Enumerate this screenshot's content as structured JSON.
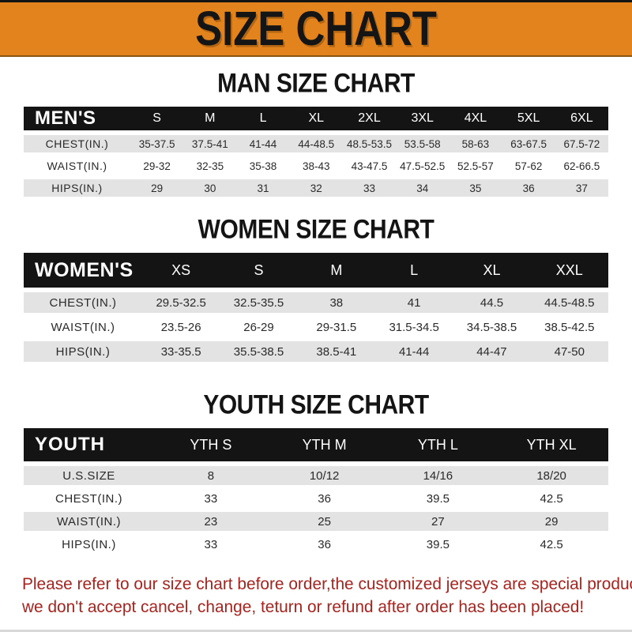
{
  "banner": {
    "title": "SIZE CHART"
  },
  "colors": {
    "banner_orange": "#E2831E",
    "bar_black": "#141414",
    "row_gray": "#E3E3E3",
    "note_red": "#A6241F"
  },
  "sections": [
    {
      "id": "men",
      "title": "MAN SIZE CHART",
      "table": {
        "header_label": "MEN'S",
        "columns": [
          "S",
          "M",
          "L",
          "XL",
          "2XL",
          "3XL",
          "4XL",
          "5XL",
          "6XL"
        ],
        "rows": [
          {
            "label": "CHEST(IN.)",
            "values": [
              "35-37.5",
              "37.5-41",
              "41-44",
              "44-48.5",
              "48.5-53.5",
              "53.5-58",
              "58-63",
              "63-67.5",
              "67.5-72"
            ]
          },
          {
            "label": "WAIST(IN.)",
            "values": [
              "29-32",
              "32-35",
              "35-38",
              "38-43",
              "43-47.5",
              "47.5-52.5",
              "52.5-57",
              "57-62",
              "62-66.5"
            ]
          },
          {
            "label": "HIPS(IN.)",
            "values": [
              "29",
              "30",
              "31",
              "32",
              "33",
              "34",
              "35",
              "36",
              "37"
            ]
          }
        ],
        "shaded_rows": [
          0,
          2
        ]
      }
    },
    {
      "id": "women",
      "title": "WOMEN SIZE CHART",
      "table": {
        "header_label": "WOMEN'S",
        "columns": [
          "XS",
          "S",
          "M",
          "L",
          "XL",
          "XXL"
        ],
        "rows": [
          {
            "label": "CHEST(IN.)",
            "values": [
              "29.5-32.5",
              "32.5-35.5",
              "38",
              "41",
              "44.5",
              "44.5-48.5"
            ]
          },
          {
            "label": "WAIST(IN.)",
            "values": [
              "23.5-26",
              "26-29",
              "29-31.5",
              "31.5-34.5",
              "34.5-38.5",
              "38.5-42.5"
            ]
          },
          {
            "label": "HIPS(IN.)",
            "values": [
              "33-35.5",
              "35.5-38.5",
              "38.5-41",
              "41-44",
              "44-47",
              "47-50"
            ]
          }
        ],
        "shaded_rows": [
          0,
          2
        ]
      }
    },
    {
      "id": "youth",
      "title": "YOUTH SIZE CHART",
      "table": {
        "header_label": "YOUTH",
        "columns": [
          "YTH S",
          "YTH M",
          "YTH L",
          "YTH XL"
        ],
        "rows": [
          {
            "label": "U.S.SIZE",
            "values": [
              "8",
              "10/12",
              "14/16",
              "18/20"
            ]
          },
          {
            "label": "CHEST(IN.)",
            "values": [
              "33",
              "36",
              "39.5",
              "42.5"
            ]
          },
          {
            "label": "WAIST(IN.)",
            "values": [
              "23",
              "25",
              "27",
              "29"
            ]
          },
          {
            "label": "HIPS(IN.)",
            "values": [
              "33",
              "36",
              "39.5",
              "42.5"
            ]
          }
        ],
        "shaded_rows": [
          0,
          2
        ]
      }
    }
  ],
  "note": {
    "line1": "Please refer to our size chart before order,the customized jerseys are special products,",
    "line2": "we don't accept cancel, change, teturn or refund after order has been placed!"
  }
}
